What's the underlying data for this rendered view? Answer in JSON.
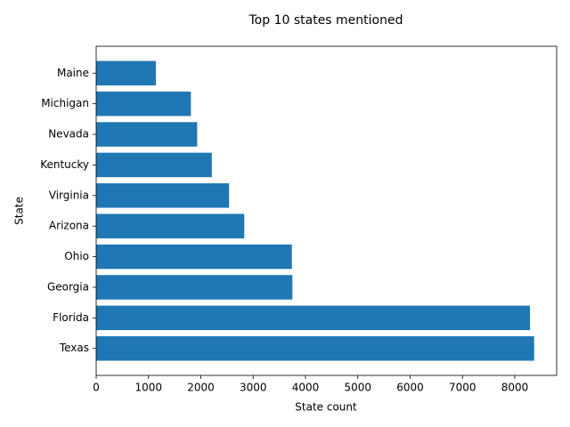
{
  "chart_data": {
    "type": "barh",
    "title": "Top 10 states mentioned",
    "xlabel": "State count",
    "ylabel": "State",
    "categories": [
      "Texas",
      "Florida",
      "Georgia",
      "Ohio",
      "Arizona",
      "Virginia",
      "Kentucky",
      "Nevada",
      "Michigan",
      "Maine"
    ],
    "values": [
      8370,
      8290,
      3750,
      3740,
      2830,
      2540,
      2210,
      1930,
      1810,
      1140
    ],
    "color": "#1f77b4",
    "xlim": [
      0,
      8800
    ],
    "xticks": [
      0,
      1000,
      2000,
      3000,
      4000,
      5000,
      6000,
      7000,
      8000
    ],
    "grid": false
  }
}
